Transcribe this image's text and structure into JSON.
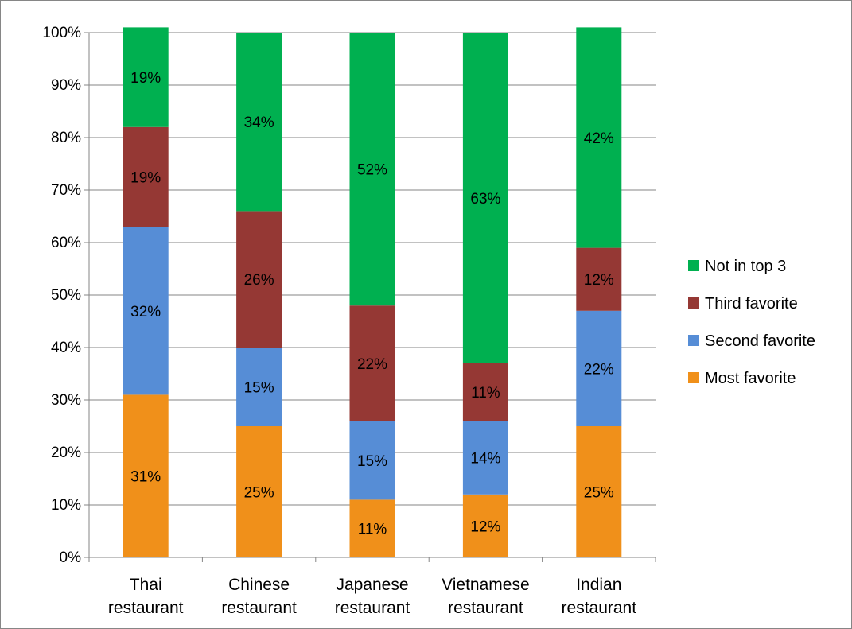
{
  "chart_data": {
    "type": "bar",
    "stacked": true,
    "percent_stacked": true,
    "categories": [
      [
        "Thai",
        "restaurant"
      ],
      [
        "Chinese",
        "restaurant"
      ],
      [
        "Japanese",
        "restaurant"
      ],
      [
        "Vietnamese",
        "restaurant"
      ],
      [
        "Indian",
        "restaurant"
      ]
    ],
    "series": [
      {
        "name": "Most favorite",
        "color": "#f0901a",
        "values": [
          31,
          25,
          11,
          12,
          25
        ],
        "labels": [
          "31%",
          "25%",
          "11%",
          "12%",
          "25%"
        ]
      },
      {
        "name": "Second favorite",
        "color": "#568dd6",
        "values": [
          32,
          15,
          15,
          14,
          22
        ],
        "labels": [
          "32%",
          "15%",
          "15%",
          "14%",
          "22%"
        ]
      },
      {
        "name": "Third favorite",
        "color": "#953834",
        "values": [
          19,
          26,
          22,
          11,
          12
        ],
        "labels": [
          "19%",
          "26%",
          "22%",
          "11%",
          "12%"
        ]
      },
      {
        "name": "Not in top 3",
        "color": "#00b050",
        "values": [
          19,
          34,
          52,
          63,
          42
        ],
        "labels": [
          "19%",
          "34%",
          "52%",
          "63%",
          "42%"
        ]
      }
    ],
    "y_ticks": [
      "0%",
      "10%",
      "20%",
      "30%",
      "40%",
      "50%",
      "60%",
      "70%",
      "80%",
      "90%",
      "100%"
    ],
    "ylim": [
      0,
      100
    ],
    "grid": true,
    "legend_position": "right",
    "legend_order": [
      "Not in top 3",
      "Third favorite",
      "Second favorite",
      "Most favorite"
    ],
    "title": "",
    "xlabel": "",
    "ylabel": ""
  }
}
